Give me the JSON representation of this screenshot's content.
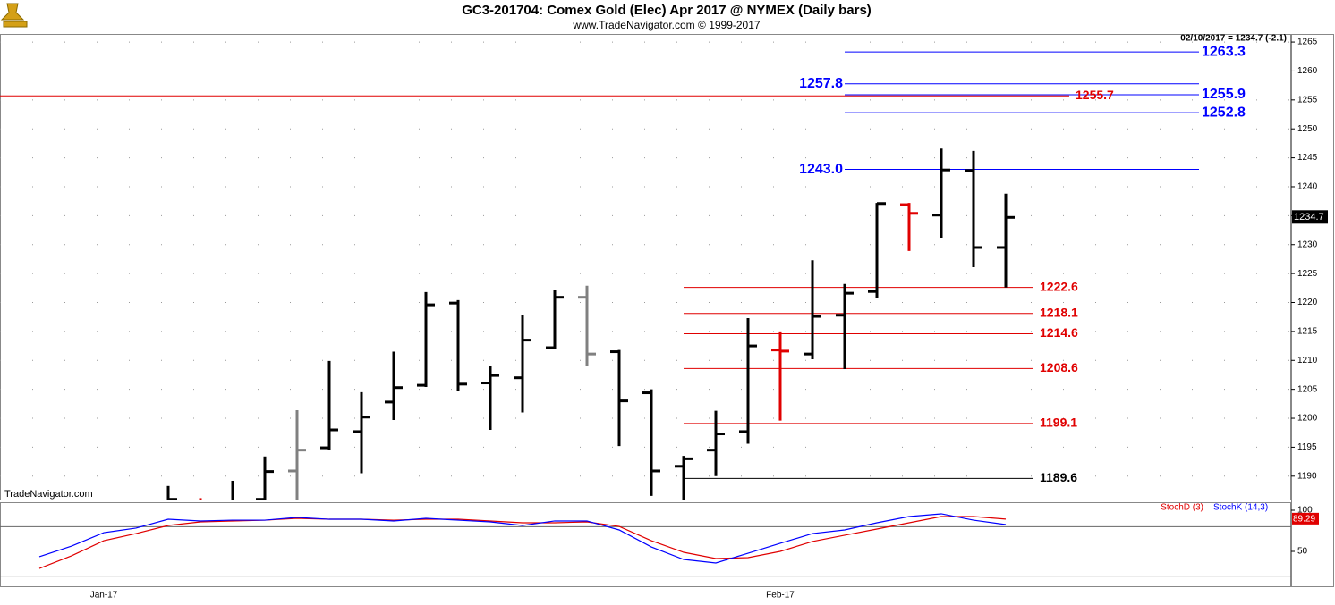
{
  "chart_data": {
    "type": "ohlc",
    "title": "GC3-201704:  Comex Gold (Elec) Apr 2017 @ NYMEX  (Daily bars)",
    "subtitle": "www.TradeNavigator.com © 1999-2017",
    "watermark": "TradeNavigator.com",
    "info": "02/10/2017 = 1234.7 (-2.1)",
    "categories": [
      null,
      null,
      "Jan-17",
      null,
      null,
      null,
      null,
      null,
      null,
      null,
      null,
      null,
      null,
      null,
      null,
      null,
      null,
      null,
      null,
      null,
      null,
      null,
      null,
      "Feb-17",
      null,
      null,
      null,
      null,
      null,
      null,
      null
    ],
    "open": [
      null,
      null,
      null,
      null,
      1185,
      1185,
      1184,
      1186,
      1190.9,
      1194.9,
      1197.7,
      1202.8,
      1205.7,
      1219.9,
      1206.1,
      1207,
      1212.2,
      1220.9,
      1211.5,
      1204.4,
      1191.7,
      1194.5,
      1197.7,
      1211.8,
      1211.1,
      1217.8,
      1221.9,
      1236.9,
      1235.1,
      1242.8,
      1229.5
    ],
    "high": [
      null,
      null,
      null,
      null,
      1188.3,
      1186.2,
      1189.2,
      1193.4,
      1201.4,
      1209.9,
      1204.5,
      1211.5,
      1221.8,
      1220.4,
      1209,
      1217.8,
      1222.1,
      1222.9,
      1211.8,
      1205,
      1193.5,
      1201.3,
      1217.3,
      1215,
      1227.3,
      1223.2,
      1237.2,
      1237.2,
      1246.6,
      1246.2,
      1238.8
    ],
    "low": [
      null,
      null,
      null,
      null,
      1183,
      1183,
      1183,
      1184,
      1183,
      1194.6,
      1190.5,
      1199.7,
      1205.4,
      1204.8,
      1198,
      1201,
      1211.9,
      1209.1,
      1195.2,
      1186.6,
      1185,
      1190,
      1195.6,
      1199.6,
      1210.2,
      1208.5,
      1220.7,
      1228.9,
      1231.2,
      1226.1,
      1222.6
    ],
    "close": [
      null,
      null,
      null,
      null,
      1186,
      1185.5,
      1184,
      1190.8,
      1194.5,
      1198,
      1200.2,
      1205.3,
      1219.6,
      1205.9,
      1207.4,
      1213.5,
      1220.9,
      1211.1,
      1203,
      1190.9,
      1193,
      1197.3,
      1212.5,
      1211.6,
      1217.6,
      1221.6,
      1237.1,
      1235.4,
      1242.9,
      1229.5,
      1234.7
    ],
    "bar_colors": [
      null,
      null,
      null,
      null,
      "#000000",
      "#e00000",
      "#000000",
      "#000000",
      "#808080",
      "#000000",
      "#000000",
      "#000000",
      "#000000",
      "#000000",
      "#000000",
      "#000000",
      "#000000",
      "#808080",
      "#000000",
      "#000000",
      "#000000",
      "#000000",
      "#000000",
      "#e00000",
      "#000000",
      "#000000",
      "#000000",
      "#e00000",
      "#000000",
      "#000000",
      "#000000"
    ],
    "ylim": [
      1185.8,
      1266.4
    ],
    "yticks": [
      1190,
      1195,
      1200,
      1205,
      1210,
      1215,
      1220,
      1225,
      1230,
      1235,
      1240,
      1245,
      1250,
      1255,
      1260,
      1265
    ],
    "grid": true,
    "levels": [
      {
        "color": "#0000ff",
        "values": [
          1263.3,
          1257.8,
          1255.9,
          1252.8,
          1243.0
        ],
        "value_labels": [
          "1263.3",
          "1257.8",
          "1255.9",
          "1252.8",
          "1243.0"
        ],
        "label_side": [
          "right",
          "left",
          "right",
          "right",
          "left"
        ]
      },
      {
        "color": "#e00000",
        "values": [
          1255.7
        ],
        "value_labels": [
          "1255.7"
        ],
        "label_side": [
          "right"
        ]
      },
      {
        "color": "#e00000",
        "values": [
          1222.6,
          1218.1,
          1214.6,
          1208.6,
          1199.1
        ],
        "value_labels": [
          "1222.6",
          "1218.1",
          "1214.6",
          "1208.6",
          "1199.1"
        ],
        "label_side": [
          "right",
          "right",
          "right",
          "right",
          "right"
        ]
      },
      {
        "color": "#000000",
        "values": [
          1189.6
        ],
        "value_labels": [
          "1189.6"
        ],
        "label_side": [
          "right"
        ]
      }
    ],
    "stoch": {
      "type": "line",
      "series": [
        {
          "name": "StochD (3)",
          "color": "#e00000",
          "values": [
            29.3,
            44.6,
            63,
            71.7,
            81.5,
            85.9,
            87,
            88,
            90.2,
            89.1,
            89.1,
            88,
            89.1,
            89.1,
            87,
            84.8,
            84.8,
            85.9,
            80.4,
            63,
            48.9,
            41.3,
            42.4,
            50,
            62,
            69.6,
            77.2,
            84.8,
            92.4,
            92.4,
            89.29
          ]
        },
        {
          "name": "StochK (14,3)",
          "color": "#0000ff",
          "values": [
            43.5,
            56.5,
            72.8,
            78.3,
            89.1,
            87,
            88,
            88,
            91.3,
            89.1,
            89.1,
            87,
            90.2,
            88,
            85.9,
            81.5,
            87,
            87,
            76.1,
            55.4,
            40.2,
            35.9,
            47.8,
            59.8,
            71.7,
            76.1,
            84.8,
            92.4,
            95.7,
            88,
            82.6
          ]
        }
      ],
      "ylim": [
        6.5,
        109.8
      ],
      "yticks": [
        50,
        100
      ],
      "reference_lines": [
        80,
        20
      ]
    }
  }
}
